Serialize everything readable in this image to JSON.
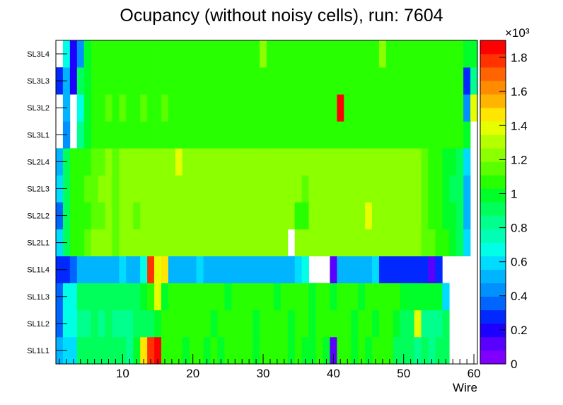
{
  "chart_data": {
    "type": "heatmap",
    "title": "Ocupancy (without noisy cells), run: 7604",
    "xlabel": "Wire",
    "ylabel": "",
    "x_range": [
      0.5,
      60.5
    ],
    "x_ticks": [
      "10",
      "20",
      "30",
      "40",
      "50",
      "60"
    ],
    "y_categories": [
      "SL1L1",
      "SL1L2",
      "SL1L3",
      "SL1L4",
      "SL2L1",
      "SL2L2",
      "SL2L3",
      "SL2L4",
      "SL3L1",
      "SL3L2",
      "SL3L3",
      "SL3L4"
    ],
    "z_range": [
      0,
      1900
    ],
    "z_exponent_label": "×10³",
    "z_ticks": [
      "0",
      "0.2",
      "0.4",
      "0.6",
      "0.8",
      "1",
      "1.2",
      "1.4",
      "1.6",
      "1.8"
    ],
    "palette": [
      "#7f00ff",
      "#5a00ff",
      "#1e00ff",
      "#0028ff",
      "#0064ff",
      "#0091ff",
      "#00b4ff",
      "#00dcff",
      "#00ffe6",
      "#00ffb4",
      "#00ff8c",
      "#00ff5a",
      "#00ff28",
      "#28ff00",
      "#5aff00",
      "#8cff00",
      "#b4ff00",
      "#e6ff00",
      "#ffe600",
      "#ffb400",
      "#ff8c00",
      "#ff6400",
      "#ff3200",
      "#ff0000"
    ],
    "grid": false,
    "legend": "color bar right",
    "rows": [
      {
        "name": "SL1L1",
        "values": [
          480,
          600,
          620,
          880,
          900,
          920,
          880,
          940,
          900,
          920,
          870,
          950,
          1450,
          1800,
          1850,
          1100,
          1080,
          1060,
          1000,
          1050,
          1080,
          1020,
          1050,
          1000,
          1060,
          1070,
          1050,
          1040,
          1020,
          1050,
          1030,
          1040,
          1050,
          1020,
          1030,
          1000,
          1020,
          1060,
          1020,
          150,
          1050,
          1030,
          1020,
          1060,
          1010,
          1080,
          1050,
          1040,
          920,
          900,
          880,
          860,
          880,
          850,
          900,
          880,
          null,
          null,
          null,
          null
        ]
      },
      {
        "name": "SL1L2",
        "values": [
          380,
          650,
          650,
          850,
          860,
          880,
          870,
          880,
          860,
          850,
          870,
          880,
          900,
          900,
          950,
          1050,
          1060,
          1080,
          1030,
          1050,
          1060,
          1040,
          1020,
          1050,
          1040,
          1060,
          1080,
          1050,
          1020,
          1040,
          1050,
          1030,
          1040,
          1020,
          1030,
          1050,
          1020,
          1040,
          1050,
          1030,
          1040,
          1050,
          1020,
          1040,
          1060,
          1020,
          1040,
          1040,
          980,
          880,
          900,
          1350,
          850,
          840,
          860,
          880,
          null,
          null,
          null,
          null
        ]
      },
      {
        "name": "SL1L3",
        "values": [
          380,
          680,
          700,
          880,
          900,
          920,
          910,
          880,
          920,
          900,
          880,
          900,
          950,
          1100,
          1350,
          1020,
          1060,
          1040,
          1050,
          1060,
          1030,
          1050,
          1060,
          1040,
          1020,
          1050,
          1060,
          1040,
          1030,
          1050,
          1040,
          1020,
          1050,
          1060,
          1040,
          1050,
          1020,
          1050,
          1040,
          1020,
          1050,
          1060,
          1040,
          1020,
          1050,
          1060,
          1040,
          1050,
          1040,
          1020,
          1000,
          990,
          1000,
          1020,
          980,
          600,
          null,
          null,
          null,
          null
        ]
      },
      {
        "name": "SL1L4",
        "values": [
          250,
          250,
          350,
          480,
          520,
          480,
          520,
          480,
          520,
          600,
          500,
          520,
          700,
          1800,
          1350,
          1500,
          480,
          500,
          520,
          480,
          600,
          480,
          500,
          480,
          520,
          480,
          500,
          480,
          500,
          480,
          520,
          480,
          500,
          480,
          600,
          680,
          null,
          null,
          null,
          150,
          520,
          480,
          520,
          520,
          480,
          560,
          300,
          280,
          300,
          280,
          300,
          280,
          300,
          150,
          300,
          null,
          null,
          null,
          null,
          null
        ]
      },
      {
        "name": "SL2L1",
        "values": [
          620,
          900,
          1060,
          1080,
          1150,
          1200,
          1200,
          1220,
          1180,
          1200,
          1220,
          1200,
          1200,
          1200,
          1200,
          1200,
          1220,
          1240,
          1230,
          1240,
          1220,
          1240,
          1260,
          1240,
          1220,
          1230,
          1240,
          1230,
          1250,
          1260,
          1240,
          1230,
          1240,
          null,
          1260,
          1240,
          1250,
          1240,
          1230,
          1240,
          1250,
          1230,
          1240,
          1230,
          1220,
          1250,
          1240,
          1230,
          1240,
          1230,
          1240,
          1220,
          1180,
          1150,
          1100,
          1050,
          1000,
          900,
          600,
          null
        ]
      },
      {
        "name": "SL2L2",
        "values": [
          380,
          880,
          1060,
          1080,
          1100,
          1150,
          1180,
          1200,
          1180,
          1200,
          1210,
          1180,
          1200,
          1210,
          1220,
          1220,
          1240,
          1250,
          1240,
          1230,
          1220,
          1240,
          1250,
          1260,
          1240,
          1230,
          1250,
          1240,
          1230,
          1250,
          1240,
          1230,
          1250,
          1240,
          1050,
          1100,
          1230,
          1250,
          1240,
          1230,
          1250,
          1240,
          1230,
          1250,
          1380,
          1240,
          1230,
          1250,
          1240,
          1230,
          1220,
          1200,
          1150,
          1100,
          1050,
          1000,
          950,
          880,
          550,
          null
        ]
      },
      {
        "name": "SL2L3",
        "values": [
          600,
          880,
          1060,
          1080,
          1150,
          1180,
          1200,
          1200,
          1180,
          1210,
          1200,
          1220,
          1200,
          1230,
          1240,
          1220,
          1240,
          1250,
          1240,
          1230,
          1260,
          1240,
          1250,
          1260,
          1240,
          1250,
          1240,
          1230,
          1240,
          1250,
          1240,
          1230,
          1250,
          1240,
          1250,
          1110,
          1230,
          1240,
          1250,
          1230,
          1240,
          1250,
          1230,
          1240,
          1250,
          1230,
          1240,
          1250,
          1240,
          1230,
          1220,
          1200,
          1150,
          1100,
          1050,
          1000,
          900,
          880,
          480,
          null
        ]
      },
      {
        "name": "SL2L4",
        "values": [
          500,
          880,
          1060,
          1080,
          1100,
          1150,
          1180,
          1200,
          1180,
          1200,
          1190,
          1210,
          1200,
          1220,
          1200,
          1220,
          1240,
          1350,
          1230,
          1250,
          1240,
          1260,
          1240,
          1250,
          1230,
          1240,
          1250,
          1260,
          1240,
          1230,
          1250,
          1240,
          1230,
          1250,
          1240,
          1230,
          1250,
          1240,
          1230,
          1250,
          1240,
          1230,
          1250,
          1240,
          1230,
          1250,
          1240,
          1230,
          1250,
          1240,
          1220,
          1200,
          1150,
          1100,
          1050,
          1000,
          950,
          880,
          560,
          null
        ]
      },
      {
        "name": "SL3L1",
        "values": [
          null,
          400,
          null,
          850,
          1000,
          1050,
          1060,
          1040,
          1060,
          1050,
          1080,
          1040,
          1060,
          1050,
          1070,
          1040,
          1060,
          1050,
          1080,
          1060,
          1040,
          1050,
          1060,
          1040,
          1060,
          1050,
          1080,
          1040,
          1060,
          1050,
          1040,
          1060,
          1050,
          1040,
          1060,
          1050,
          1080,
          1040,
          1060,
          1050,
          1040,
          1060,
          1050,
          1040,
          1060,
          1050,
          1080,
          1040,
          1060,
          1050,
          1040,
          1060,
          1050,
          1080,
          1060,
          1040,
          1050,
          1040,
          1000,
          null
        ]
      },
      {
        "name": "SL3L2",
        "values": [
          null,
          520,
          null,
          650,
          1000,
          1100,
          1050,
          1150,
          1080,
          1120,
          1060,
          1100,
          1150,
          1080,
          1100,
          1120,
          1080,
          1100,
          1060,
          1100,
          1080,
          1100,
          1060,
          1080,
          1100,
          1080,
          1060,
          1100,
          1080,
          1100,
          1060,
          1080,
          1100,
          1080,
          1060,
          1100,
          1080,
          1060,
          1100,
          1080,
          1850,
          1060,
          1080,
          1100,
          1060,
          1080,
          1100,
          1060,
          1080,
          1100,
          1080,
          1060,
          1100,
          1080,
          1060,
          1100,
          1080,
          1060,
          400,
          1400
        ]
      },
      {
        "name": "SL3L3",
        "values": [
          300,
          480,
          200,
          900,
          1000,
          1050,
          1100,
          1060,
          1100,
          1080,
          1060,
          1100,
          1080,
          1060,
          1100,
          1080,
          1100,
          1060,
          1080,
          1100,
          1060,
          1080,
          1100,
          1060,
          1080,
          1100,
          1060,
          1080,
          1100,
          1060,
          1080,
          1100,
          1060,
          1080,
          1100,
          1060,
          1080,
          1100,
          1060,
          1080,
          1100,
          1060,
          1080,
          1100,
          1060,
          1080,
          1100,
          1060,
          1080,
          1100,
          1060,
          1080,
          1100,
          1060,
          1080,
          1100,
          1060,
          1080,
          250,
          850
        ]
      },
      {
        "name": "SL3L4",
        "values": [
          null,
          650,
          200,
          450,
          1000,
          1050,
          1100,
          1060,
          1080,
          1100,
          1060,
          1080,
          1100,
          1060,
          1080,
          1100,
          1060,
          1080,
          1100,
          1060,
          1080,
          1100,
          1060,
          1080,
          1100,
          1060,
          1080,
          1100,
          1060,
          1200,
          1080,
          1100,
          1060,
          1080,
          1100,
          1060,
          1080,
          1100,
          1060,
          1080,
          1100,
          1060,
          1080,
          1100,
          1060,
          1080,
          1200,
          1100,
          1060,
          1080,
          1100,
          1060,
          1080,
          1100,
          1060,
          1080,
          1100,
          1060,
          950,
          1000
        ]
      }
    ]
  }
}
